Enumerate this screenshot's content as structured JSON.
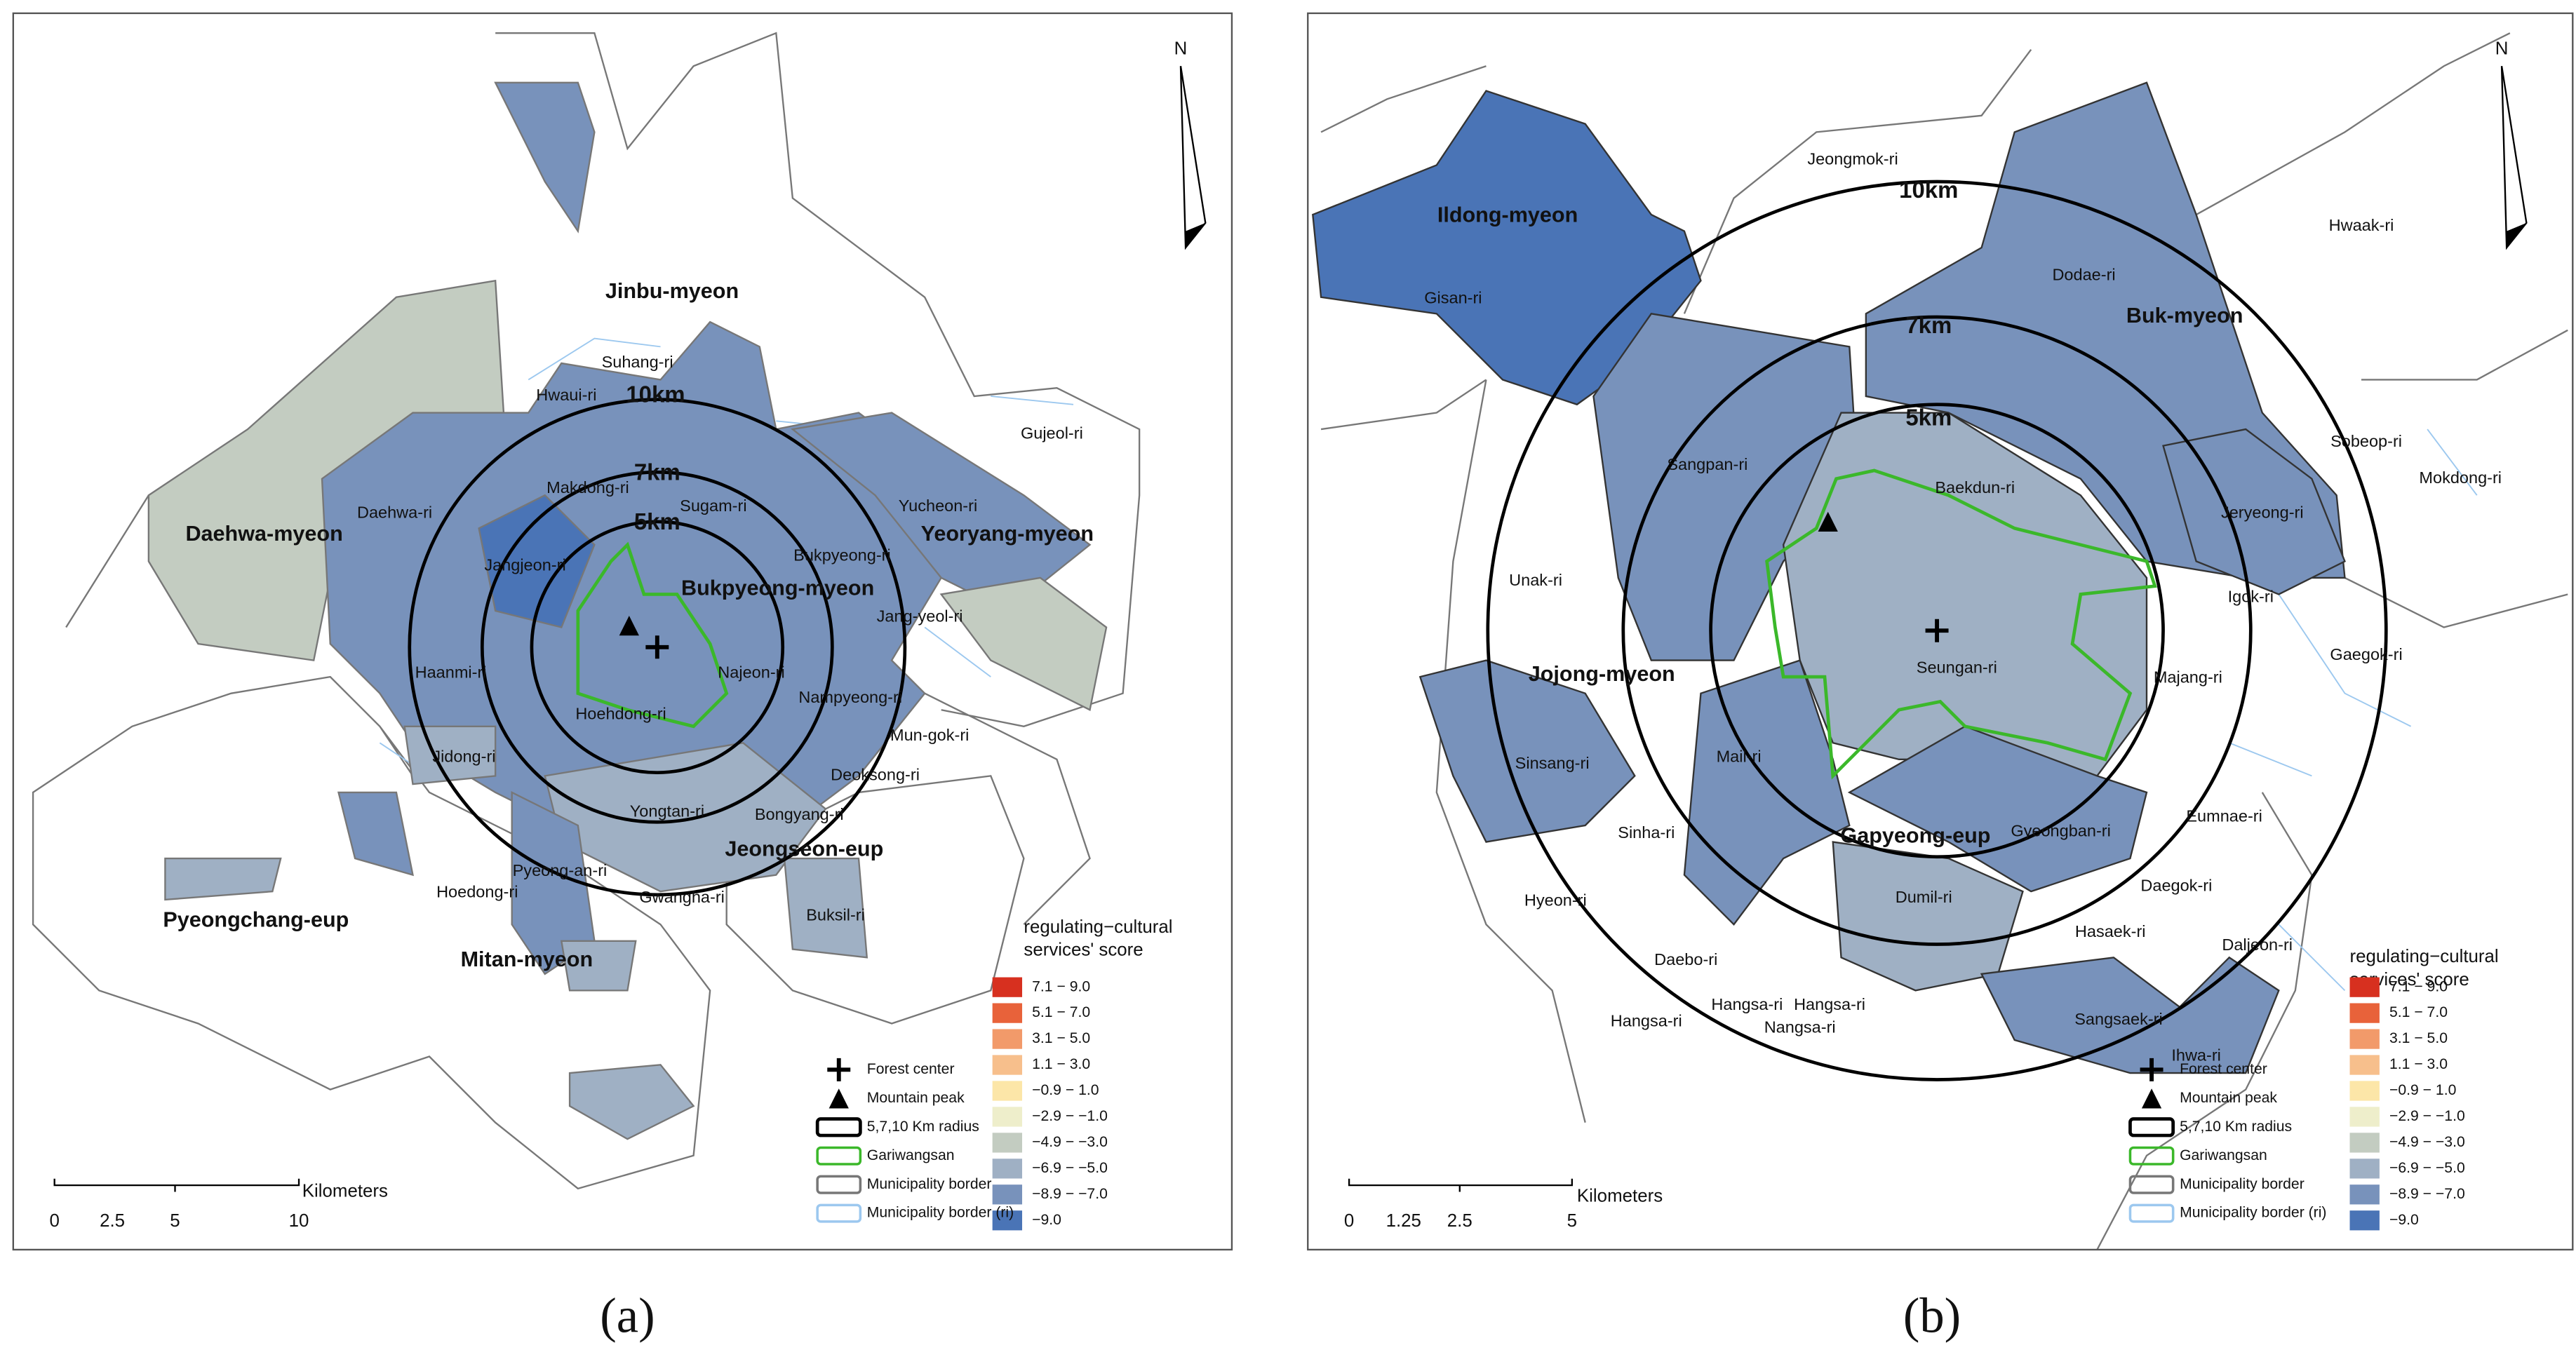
{
  "panels": [
    {
      "label": "(a)",
      "north": "N",
      "rings": [
        "10km",
        "7km",
        "5km"
      ],
      "places": [
        "Jinbu-myeon",
        "Suhang-ri",
        "Hwaui-ri",
        "Gujeol-ri",
        "Makdong-ri",
        "Sugam-ri",
        "Yucheon-ri",
        "Daehwa-ri",
        "Daehwa-myeon",
        "Yeoryang-myeon",
        "Jangjeon-ri",
        "Bukpyeong-ri",
        "Bukpyeong-myeon",
        "Jang-yeol-ri",
        "Haanmi-ri",
        "Najeon-ri",
        "Nampyeong-ri",
        "Hoehdong-ri",
        "Mun-gok-ri",
        "Jidong-ri",
        "Deoksong-ri",
        "Yongtan-ri",
        "Bongyang-ri",
        "Jeongseon-eup",
        "Pyeong-an-ri",
        "Buksil-ri",
        "Hoedong-ri",
        "Gwangha-ri",
        "Pyeongchang-eup",
        "Mitan-myeon"
      ],
      "scale": {
        "unit": "Kilometers",
        "ticks": [
          "0",
          "2.5",
          "5",
          "10"
        ]
      },
      "legend": {
        "title": [
          "regulating−cultural",
          "services' score"
        ],
        "classes": [
          "7.1 − 9.0",
          "5.1 − 7.0",
          "3.1 − 5.0",
          "1.1 − 3.0",
          "−0.9 − 1.0",
          "−2.9 − −1.0",
          "−4.9 − −3.0",
          "−6.9 − −5.0",
          "−8.9 − −7.0",
          "−9.0"
        ],
        "symbols": [
          "Forest center",
          "Mountain peak",
          "5,7,10 Km radius",
          "Gariwangsan",
          "Municipality border",
          "Municipality border (ri)"
        ]
      }
    },
    {
      "label": "(b)",
      "north": "N",
      "rings": [
        "10km",
        "7km",
        "5km"
      ],
      "places": [
        "Jeongmok-ri",
        "Ildong-myeon",
        "Hwaak-ri",
        "Dodae-ri",
        "Gisan-ri",
        "Buk-myeon",
        "Sobeop-ri",
        "Sangpan-ri",
        "Mokdong-ri",
        "Baekdun-ri",
        "Jeryeong-ri",
        "Unak-ri",
        "Igok-ri",
        "Seungan-ri",
        "Jojong-myeon",
        "Gaegok-ri",
        "Majang-ri",
        "Sinsang-ri",
        "Mail-ri",
        "Eumnae-ri",
        "Sinha-ri",
        "Gapyeong-eup",
        "Gyeongban-ri",
        "Hyeon-ri",
        "Dumil-ri",
        "Daegok-ri",
        "Hasaek-ri",
        "Daljeon-ri",
        "Daebo-ri",
        "Hangsa-ri",
        "Hangsa-ri",
        "Nangsa-ri",
        "Hangsa-ri",
        "Sangsaek-ri",
        "Ihwa-ri"
      ],
      "scale": {
        "unit": "Kilometers",
        "ticks": [
          "0",
          "1.25",
          "2.5",
          "5"
        ]
      },
      "legend": {
        "title": [
          "regulating−cultural",
          "services' score"
        ],
        "classes": [
          "7.1 − 9.0",
          "5.1 − 7.0",
          "3.1 − 5.0",
          "1.1 − 3.0",
          "−0.9 − 1.0",
          "−2.9 − −1.0",
          "−4.9 − −3.0",
          "−6.9 − −5.0",
          "−8.9 − −7.0",
          "−9.0"
        ],
        "symbols": [
          "Forest center",
          "Mountain peak",
          "5,7,10 Km radius",
          "Gariwangsan",
          "Municipality border",
          "Municipality border (ri)"
        ]
      }
    }
  ]
}
